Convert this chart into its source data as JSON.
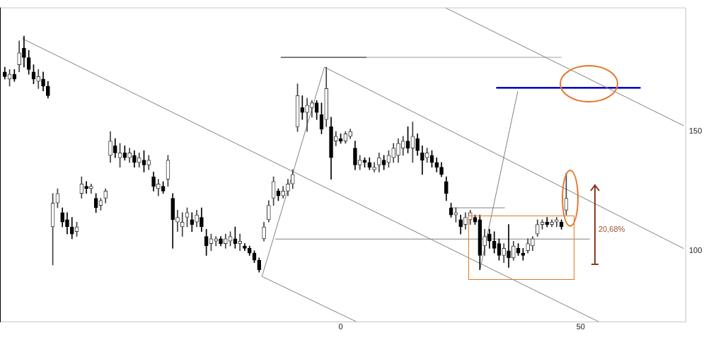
{
  "chart_data": {
    "type": "candlestick",
    "colors": [
      "#000000",
      "#404040",
      "#000000",
      "#404040",
      "#000000",
      "#000000",
      "#000000",
      "#404040",
      "#000000",
      "#000000",
      "#404040",
      "#404040",
      "#000000",
      "#000000",
      "#000000",
      "#404040",
      "#404040",
      "#000000",
      "#404040",
      "#000000",
      "#404040",
      "#404040",
      "#404040",
      "#000000",
      "#404040",
      "#000000",
      "#404040",
      "#000000",
      "#404040",
      "#000000",
      "#404040",
      "#000000",
      "#404040",
      "#000000",
      "#404040",
      "#000000",
      "#404040",
      "#404040",
      "#404040",
      "#000000",
      "#404040",
      "#000000",
      "#000000",
      "#404040",
      "#404040",
      "#000000",
      "#404040",
      "#404040",
      "#000000",
      "#404040",
      "#000000",
      "#000000",
      "#000000",
      "#000000",
      "#404040",
      "#404040",
      "#404040",
      "#000000",
      "#404040",
      "#404040",
      "#404040",
      "#404040",
      "#000000",
      "#404040",
      "#404040",
      "#000000",
      "#000000",
      "#404040",
      "#000000",
      "#404040",
      "#000000",
      "#404040",
      "#404040",
      "#000000",
      "#404040",
      "#000000",
      "#000000",
      "#404040",
      "#404040",
      "#000000",
      "#404040",
      "#404040",
      "#404040",
      "#404040",
      "#000000",
      "#404040",
      "#000000",
      "#000000",
      "#404040",
      "#000000",
      "#000000",
      "#000000",
      "#000000",
      "#000000",
      "#404040",
      "#000000",
      "#404040",
      "#404040",
      "#000000",
      "#000000",
      "#404040",
      "#000000",
      "#000000",
      "#000000",
      "#404040",
      "#000000",
      "#404040",
      "#000000",
      "#000000",
      "#404040",
      "#404040",
      "#404040",
      "#404040",
      "#000000",
      "#404040",
      "#404040",
      "#000000",
      "#404040"
    ],
    "xlim": [
      -71,
      72
    ],
    "xticks": [
      0,
      50
    ],
    "ylim": [
      70,
      202
    ],
    "yticks": [
      100,
      150
    ],
    "grid": false,
    "legend": false,
    "x": [
      -70,
      -69,
      -68,
      -67,
      -66,
      -65,
      -64,
      -63,
      -62,
      -61,
      -60,
      -59,
      -58,
      -57,
      -56,
      -55,
      -54,
      -53,
      -52,
      -51,
      -50,
      -49,
      -48,
      -47,
      -46,
      -45,
      -44,
      -43,
      -42,
      -41,
      -40,
      -39,
      -38,
      -37,
      -36,
      -35,
      -34,
      -33,
      -32,
      -31,
      -30,
      -29,
      -28,
      -27,
      -26,
      -25,
      -24,
      -23,
      -22,
      -21,
      -20,
      -19,
      -18,
      -17,
      -16,
      -15,
      -14,
      -13,
      -12,
      -11,
      -10,
      -9,
      -8,
      -7,
      -6,
      -5,
      -4,
      -3,
      -2,
      -1,
      0,
      1,
      2,
      3,
      4,
      5,
      6,
      7,
      8,
      9,
      10,
      11,
      12,
      13,
      14,
      15,
      16,
      17,
      18,
      19,
      20,
      21,
      22,
      23,
      24,
      25,
      26,
      27,
      28,
      29,
      30,
      31,
      32,
      33,
      34,
      35,
      36,
      37,
      38,
      39,
      40,
      41,
      42,
      43,
      44,
      45,
      46,
      47
    ],
    "ohlc": [
      [
        175,
        177,
        172,
        173
      ],
      [
        172,
        176,
        169,
        174
      ],
      [
        174,
        176,
        171,
        172
      ],
      [
        178,
        188,
        175,
        183
      ],
      [
        185,
        190,
        177,
        181
      ],
      [
        181,
        184,
        174,
        176
      ],
      [
        175,
        178,
        170,
        172
      ],
      [
        171,
        176,
        168,
        173
      ],
      [
        172,
        175,
        167,
        169
      ],
      [
        169,
        171,
        164,
        165
      ],
      [
        110,
        124,
        94,
        120
      ],
      [
        120,
        126,
        118,
        124
      ],
      [
        116,
        118,
        110,
        112
      ],
      [
        113,
        116,
        107,
        110
      ],
      [
        110,
        114,
        105,
        107
      ],
      [
        108,
        112,
        106,
        110
      ],
      [
        124,
        131,
        122,
        128
      ],
      [
        127,
        129,
        124,
        126
      ],
      [
        126,
        128,
        124,
        127
      ],
      [
        122,
        124,
        116,
        118
      ],
      [
        119,
        122,
        117,
        121
      ],
      [
        122,
        126,
        120,
        125
      ],
      [
        140,
        150,
        137,
        146
      ],
      [
        144,
        147,
        139,
        141
      ],
      [
        139,
        145,
        135,
        141
      ],
      [
        141,
        144,
        138,
        139
      ],
      [
        139,
        143,
        137,
        141
      ],
      [
        140,
        142,
        135,
        137
      ],
      [
        137,
        141,
        135,
        139
      ],
      [
        138,
        142,
        133,
        136
      ],
      [
        136,
        140,
        134,
        138
      ],
      [
        131,
        133,
        125,
        127
      ],
      [
        126,
        130,
        123,
        128
      ],
      [
        127,
        129,
        124,
        125
      ],
      [
        130,
        140,
        127,
        138
      ],
      [
        122,
        124,
        101,
        113
      ],
      [
        112,
        117,
        108,
        114
      ],
      [
        110,
        116,
        106,
        112
      ],
      [
        114,
        118,
        110,
        116
      ],
      [
        113,
        116,
        108,
        111
      ],
      [
        112,
        117,
        110,
        115
      ],
      [
        114,
        118,
        108,
        110
      ],
      [
        106,
        109,
        98,
        102
      ],
      [
        103,
        107,
        100,
        105
      ],
      [
        104,
        106,
        102,
        105
      ],
      [
        105,
        106,
        102,
        103
      ],
      [
        103,
        107,
        101,
        105
      ],
      [
        104,
        108,
        102,
        106
      ],
      [
        105,
        110,
        101,
        103
      ],
      [
        103,
        107,
        100,
        104
      ],
      [
        102,
        103,
        100,
        101
      ],
      [
        101,
        102,
        98,
        99
      ],
      [
        99,
        100,
        95,
        96
      ],
      [
        96,
        97,
        91,
        92
      ],
      [
        105,
        112,
        104,
        110
      ],
      [
        113,
        121,
        112,
        119
      ],
      [
        122,
        131,
        119,
        129
      ],
      [
        125,
        126,
        121,
        123
      ],
      [
        123,
        127,
        122,
        125
      ],
      [
        125,
        130,
        123,
        128
      ],
      [
        128,
        134,
        126,
        132
      ],
      [
        152,
        170,
        150,
        165
      ],
      [
        160,
        165,
        155,
        158
      ],
      [
        158,
        164,
        150,
        161
      ],
      [
        160,
        163,
        156,
        162
      ],
      [
        162,
        163,
        155,
        158
      ],
      [
        157,
        162,
        149,
        151
      ],
      [
        155,
        177,
        152,
        168
      ],
      [
        152,
        156,
        130,
        139
      ],
      [
        146,
        150,
        144,
        148
      ],
      [
        147,
        149,
        145,
        146
      ],
      [
        146,
        150,
        145,
        149
      ],
      [
        148,
        151,
        147,
        150
      ],
      [
        143,
        146,
        134,
        136
      ],
      [
        136,
        140,
        134,
        138
      ],
      [
        138,
        139,
        135,
        137
      ],
      [
        137,
        139,
        134,
        135
      ],
      [
        134,
        137,
        133,
        135
      ],
      [
        136,
        141,
        133,
        139
      ],
      [
        138,
        140,
        134,
        136
      ],
      [
        137,
        142,
        135,
        140
      ],
      [
        139,
        145,
        137,
        143
      ],
      [
        140,
        147,
        137,
        145
      ],
      [
        143,
        148,
        140,
        146
      ],
      [
        146,
        152,
        141,
        143
      ],
      [
        143,
        154,
        137,
        148
      ],
      [
        147,
        149,
        140,
        142
      ],
      [
        141,
        144,
        132,
        138
      ],
      [
        139,
        143,
        137,
        141
      ],
      [
        140,
        142,
        135,
        137
      ],
      [
        137,
        139,
        133,
        135
      ],
      [
        135,
        137,
        131,
        132
      ],
      [
        129,
        131,
        121,
        124
      ],
      [
        118,
        120,
        114,
        115
      ],
      [
        115,
        118,
        112,
        116
      ],
      [
        113,
        115,
        107,
        110
      ],
      [
        111,
        116,
        109,
        114
      ],
      [
        113,
        117,
        111,
        116
      ],
      [
        114,
        115,
        111,
        112
      ],
      [
        113,
        115,
        92,
        98
      ],
      [
        102,
        109,
        98,
        106
      ],
      [
        107,
        109,
        101,
        104
      ],
      [
        104,
        108,
        99,
        101
      ],
      [
        103,
        105,
        96,
        98
      ],
      [
        98,
        103,
        95,
        101
      ],
      [
        100,
        111,
        93,
        97
      ],
      [
        97,
        104,
        96,
        102
      ],
      [
        101,
        103,
        98,
        99
      ],
      [
        99,
        101,
        96,
        98
      ],
      [
        100,
        105,
        99,
        103
      ],
      [
        102,
        106,
        100,
        105
      ],
      [
        107,
        113,
        106,
        111
      ],
      [
        111,
        113,
        109,
        112
      ],
      [
        112,
        114,
        110,
        111
      ],
      [
        111,
        113,
        110,
        112
      ],
      [
        112,
        114,
        110,
        113
      ],
      [
        112,
        113,
        109,
        110
      ],
      [
        117,
        132.5,
        115,
        122
      ]
    ],
    "series": [
      {
        "type": "line",
        "color": "#808080",
        "x": [
          -66.4,
          54
        ],
        "values": [
          189,
          70
        ]
      },
      {
        "type": "line",
        "color": "#808080",
        "x": [
          -3.4,
          71.5
        ],
        "values": [
          177,
          100.9
        ]
      },
      {
        "type": "line",
        "color": "#808080",
        "x": [
          21.7,
          71.5
        ],
        "values": [
          202,
          152.4
        ]
      },
      {
        "type": "line",
        "color": "#808080",
        "x": [
          -16.4,
          3.2
        ],
        "values": [
          89.2,
          70.3
        ]
      },
      {
        "type": "line",
        "color": "#808080",
        "x": [
          -16.4,
          -3.4
        ],
        "values": [
          89.2,
          177
        ]
      },
      {
        "type": "line",
        "color": "#808080",
        "x": [
          29.1,
          36.9
        ],
        "values": [
          92.7,
          166.9
        ]
      },
      {
        "type": "line",
        "color": "#000000",
        "x": [
          -12.5,
          5.4
        ],
        "values": [
          181.1,
          181.1
        ]
      },
      {
        "type": "line",
        "color": "#a0a0a0",
        "x": [
          5.4,
          46
        ],
        "values": [
          181.1,
          181.1
        ]
      },
      {
        "type": "line",
        "color": "#808080",
        "x": [
          -13.7,
          51.9
        ],
        "values": [
          104.9,
          104.9
        ]
      },
      {
        "type": "line",
        "color": "#808080",
        "x": [
          23.2,
          34.2
        ],
        "values": [
          118,
          118
        ]
      },
      {
        "type": "line",
        "color": "#0000c8",
        "x": [
          32.4,
          62.5
        ],
        "values": [
          168.3,
          168.3
        ]
      }
    ],
    "annotations": [
      "20,68%"
    ]
  }
}
